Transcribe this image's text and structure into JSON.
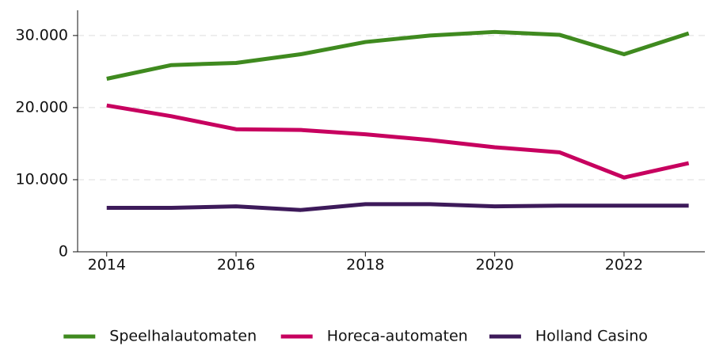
{
  "chart_data": {
    "type": "line",
    "x": [
      2014,
      2015,
      2016,
      2017,
      2018,
      2019,
      2020,
      2021,
      2022,
      2023
    ],
    "series": [
      {
        "name": "Speelhalautomaten",
        "color": "#3f8a1f",
        "values": [
          24000,
          25900,
          26200,
          27400,
          29100,
          30000,
          30500,
          30100,
          27400,
          30300
        ]
      },
      {
        "name": "Horeca-automaten",
        "color": "#c7005f",
        "values": [
          20300,
          18800,
          17000,
          16900,
          16300,
          15500,
          14500,
          13800,
          10300,
          12300
        ]
      },
      {
        "name": "Holland Casino",
        "color": "#3d1a5a",
        "values": [
          6100,
          6100,
          6300,
          5800,
          6600,
          6600,
          6300,
          6400,
          6400,
          6400
        ]
      }
    ],
    "xlim": [
      2013.55,
      2023.25
    ],
    "xticks": [
      2014,
      2016,
      2018,
      2020,
      2022
    ],
    "ylim": [
      0,
      33500
    ],
    "yticks": [
      0,
      {
        "value": 10000,
        "label": "10.000"
      },
      {
        "value": 20000,
        "label": "20.000"
      },
      {
        "value": 30000,
        "label": "30.000"
      }
    ],
    "grid": true,
    "legend": "bottom"
  }
}
